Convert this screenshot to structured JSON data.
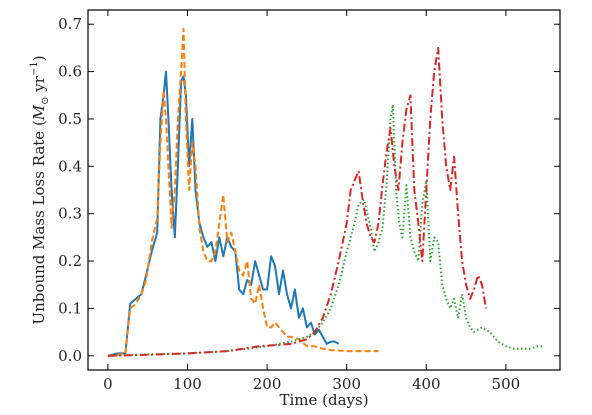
{
  "chart_data": {
    "type": "line",
    "title": "",
    "xlabel": "Time (days)",
    "ylabel": "Unbound Mass Loss Rate (",
    "ylabel_symbol": "M",
    "ylabel_sub": "⊙",
    "ylabel_unit": " yr",
    "ylabel_exp": "−1",
    "ylabel_close": ")",
    "xlim": [
      -25,
      568
    ],
    "ylim": [
      -0.03,
      0.73
    ],
    "xticks": [
      0,
      100,
      200,
      300,
      400,
      500
    ],
    "yticks": [
      0.0,
      0.1,
      0.2,
      0.3,
      0.4,
      0.5,
      0.6,
      0.7
    ],
    "xtick_labels": [
      "0",
      "100",
      "200",
      "300",
      "400",
      "500"
    ],
    "ytick_labels": [
      "0.0",
      "0.1",
      "0.2",
      "0.3",
      "0.4",
      "0.5",
      "0.6",
      "0.7"
    ],
    "grid": false,
    "legend": "none",
    "series": [
      {
        "color": "#1f77b4",
        "style": "solid",
        "points": [
          [
            0,
            0
          ],
          [
            12,
            0.005
          ],
          [
            22,
            0.005
          ],
          [
            28,
            0.11
          ],
          [
            35,
            0.12
          ],
          [
            42,
            0.13
          ],
          [
            48,
            0.17
          ],
          [
            55,
            0.22
          ],
          [
            62,
            0.26
          ],
          [
            66,
            0.5
          ],
          [
            70,
            0.55
          ],
          [
            73,
            0.6
          ],
          [
            76,
            0.5
          ],
          [
            80,
            0.35
          ],
          [
            84,
            0.25
          ],
          [
            88,
            0.4
          ],
          [
            92,
            0.58
          ],
          [
            95,
            0.59
          ],
          [
            98,
            0.55
          ],
          [
            102,
            0.4
          ],
          [
            106,
            0.5
          ],
          [
            110,
            0.35
          ],
          [
            115,
            0.28
          ],
          [
            120,
            0.25
          ],
          [
            125,
            0.23
          ],
          [
            130,
            0.24
          ],
          [
            135,
            0.2
          ],
          [
            140,
            0.25
          ],
          [
            145,
            0.21
          ],
          [
            150,
            0.25
          ],
          [
            155,
            0.23
          ],
          [
            160,
            0.22
          ],
          [
            165,
            0.14
          ],
          [
            170,
            0.13
          ],
          [
            175,
            0.16
          ],
          [
            180,
            0.15
          ],
          [
            185,
            0.2
          ],
          [
            190,
            0.17
          ],
          [
            195,
            0.14
          ],
          [
            200,
            0.14
          ],
          [
            205,
            0.21
          ],
          [
            210,
            0.19
          ],
          [
            215,
            0.13
          ],
          [
            220,
            0.18
          ],
          [
            225,
            0.13
          ],
          [
            230,
            0.1
          ],
          [
            235,
            0.14
          ],
          [
            240,
            0.08
          ],
          [
            245,
            0.1
          ],
          [
            250,
            0.06
          ],
          [
            255,
            0.07
          ],
          [
            260,
            0.045
          ],
          [
            265,
            0.055
          ],
          [
            270,
            0.04
          ],
          [
            275,
            0.025
          ],
          [
            280,
            0.03
          ],
          [
            285,
            0.03
          ],
          [
            290,
            0.025
          ]
        ]
      },
      {
        "color": "#ff7f0e",
        "style": "dashed",
        "points": [
          [
            0,
            0
          ],
          [
            15,
            0.003
          ],
          [
            22,
            0.005
          ],
          [
            28,
            0.1
          ],
          [
            35,
            0.11
          ],
          [
            42,
            0.13
          ],
          [
            48,
            0.16
          ],
          [
            55,
            0.24
          ],
          [
            62,
            0.29
          ],
          [
            66,
            0.45
          ],
          [
            70,
            0.56
          ],
          [
            73,
            0.5
          ],
          [
            76,
            0.4
          ],
          [
            80,
            0.27
          ],
          [
            84,
            0.35
          ],
          [
            88,
            0.5
          ],
          [
            92,
            0.6
          ],
          [
            95,
            0.69
          ],
          [
            98,
            0.5
          ],
          [
            102,
            0.35
          ],
          [
            106,
            0.45
          ],
          [
            110,
            0.4
          ],
          [
            115,
            0.27
          ],
          [
            120,
            0.22
          ],
          [
            125,
            0.2
          ],
          [
            130,
            0.2
          ],
          [
            135,
            0.22
          ],
          [
            140,
            0.28
          ],
          [
            145,
            0.34
          ],
          [
            150,
            0.24
          ],
          [
            155,
            0.26
          ],
          [
            160,
            0.22
          ],
          [
            165,
            0.18
          ],
          [
            170,
            0.17
          ],
          [
            175,
            0.2
          ],
          [
            180,
            0.12
          ],
          [
            185,
            0.11
          ],
          [
            190,
            0.15
          ],
          [
            195,
            0.1
          ],
          [
            200,
            0.06
          ],
          [
            205,
            0.06
          ],
          [
            210,
            0.07
          ],
          [
            215,
            0.06
          ],
          [
            220,
            0.05
          ],
          [
            225,
            0.04
          ],
          [
            230,
            0.04
          ],
          [
            240,
            0.035
          ],
          [
            250,
            0.02
          ],
          [
            260,
            0.02
          ],
          [
            270,
            0.015
          ],
          [
            280,
            0.012
          ],
          [
            300,
            0.01
          ],
          [
            320,
            0.01
          ],
          [
            340,
            0.01
          ]
        ]
      },
      {
        "color": "#2ca02c",
        "style": "dotted",
        "points": [
          [
            0,
            0
          ],
          [
            50,
            0.003
          ],
          [
            100,
            0.005
          ],
          [
            150,
            0.01
          ],
          [
            200,
            0.02
          ],
          [
            230,
            0.03
          ],
          [
            250,
            0.04
          ],
          [
            260,
            0.05
          ],
          [
            270,
            0.07
          ],
          [
            280,
            0.1
          ],
          [
            290,
            0.15
          ],
          [
            300,
            0.22
          ],
          [
            310,
            0.28
          ],
          [
            315,
            0.32
          ],
          [
            322,
            0.33
          ],
          [
            330,
            0.27
          ],
          [
            335,
            0.22
          ],
          [
            340,
            0.24
          ],
          [
            345,
            0.27
          ],
          [
            350,
            0.36
          ],
          [
            355,
            0.5
          ],
          [
            358,
            0.53
          ],
          [
            362,
            0.35
          ],
          [
            366,
            0.28
          ],
          [
            370,
            0.25
          ],
          [
            375,
            0.36
          ],
          [
            380,
            0.25
          ],
          [
            385,
            0.22
          ],
          [
            390,
            0.2
          ],
          [
            395,
            0.32
          ],
          [
            400,
            0.37
          ],
          [
            405,
            0.2
          ],
          [
            410,
            0.25
          ],
          [
            415,
            0.24
          ],
          [
            420,
            0.15
          ],
          [
            425,
            0.12
          ],
          [
            430,
            0.1
          ],
          [
            435,
            0.12
          ],
          [
            440,
            0.08
          ],
          [
            445,
            0.13
          ],
          [
            450,
            0.08
          ],
          [
            455,
            0.06
          ],
          [
            460,
            0.05
          ],
          [
            470,
            0.06
          ],
          [
            480,
            0.05
          ],
          [
            490,
            0.03
          ],
          [
            500,
            0.02
          ],
          [
            510,
            0.015
          ],
          [
            520,
            0.015
          ],
          [
            530,
            0.015
          ],
          [
            540,
            0.02
          ],
          [
            548,
            0.02
          ]
        ]
      },
      {
        "color": "#d62728",
        "style": "dashdot",
        "points": [
          [
            0,
            0
          ],
          [
            50,
            0.002
          ],
          [
            100,
            0.005
          ],
          [
            150,
            0.01
          ],
          [
            190,
            0.02
          ],
          [
            230,
            0.025
          ],
          [
            250,
            0.035
          ],
          [
            260,
            0.05
          ],
          [
            270,
            0.08
          ],
          [
            280,
            0.13
          ],
          [
            290,
            0.2
          ],
          [
            300,
            0.28
          ],
          [
            305,
            0.35
          ],
          [
            310,
            0.37
          ],
          [
            315,
            0.39
          ],
          [
            320,
            0.33
          ],
          [
            325,
            0.28
          ],
          [
            330,
            0.25
          ],
          [
            335,
            0.24
          ],
          [
            340,
            0.28
          ],
          [
            345,
            0.36
          ],
          [
            350,
            0.43
          ],
          [
            355,
            0.48
          ],
          [
            360,
            0.4
          ],
          [
            365,
            0.35
          ],
          [
            370,
            0.45
          ],
          [
            375,
            0.52
          ],
          [
            380,
            0.55
          ],
          [
            385,
            0.35
          ],
          [
            390,
            0.28
          ],
          [
            395,
            0.2
          ],
          [
            400,
            0.35
          ],
          [
            405,
            0.5
          ],
          [
            410,
            0.6
          ],
          [
            415,
            0.65
          ],
          [
            420,
            0.5
          ],
          [
            425,
            0.4
          ],
          [
            430,
            0.35
          ],
          [
            435,
            0.42
          ],
          [
            440,
            0.3
          ],
          [
            445,
            0.2
          ],
          [
            450,
            0.15
          ],
          [
            455,
            0.12
          ],
          [
            460,
            0.14
          ],
          [
            465,
            0.17
          ],
          [
            470,
            0.15
          ],
          [
            475,
            0.1
          ]
        ]
      }
    ]
  }
}
